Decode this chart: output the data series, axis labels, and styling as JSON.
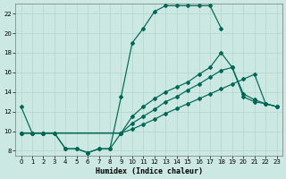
{
  "xlabel": "Humidex (Indice chaleur)",
  "bg_color": "#cce8e2",
  "grid_color": "#b8d8d0",
  "line_color": "#006655",
  "xlim_min": -0.5,
  "xlim_max": 23.5,
  "ylim_min": 7.5,
  "ylim_max": 23.0,
  "xticks": [
    0,
    1,
    2,
    3,
    4,
    5,
    6,
    7,
    8,
    9,
    10,
    11,
    12,
    13,
    14,
    15,
    16,
    17,
    18,
    19,
    20,
    21,
    22,
    23
  ],
  "yticks": [
    8,
    10,
    12,
    14,
    16,
    18,
    20,
    22
  ],
  "curve_main_x": [
    0,
    1,
    2,
    3,
    4,
    5,
    6,
    7,
    8,
    9,
    10,
    11,
    12,
    13,
    14,
    15,
    16,
    17,
    18
  ],
  "curve_main_y": [
    12.5,
    9.8,
    9.8,
    9.8,
    8.2,
    8.2,
    7.8,
    8.2,
    8.2,
    13.5,
    19.0,
    20.5,
    22.2,
    22.8,
    22.8,
    22.8,
    22.8,
    22.8,
    20.5
  ],
  "curve_mid1_x": [
    0,
    1,
    2,
    9,
    10,
    11,
    12,
    13,
    14,
    15,
    16,
    17,
    18,
    19,
    20,
    21,
    22,
    23
  ],
  "curve_mid1_y": [
    9.8,
    9.8,
    9.8,
    9.8,
    11.5,
    12.5,
    13.3,
    14.0,
    14.5,
    15.0,
    15.8,
    16.5,
    18.0,
    16.5,
    13.8,
    13.2,
    12.8,
    12.5
  ],
  "curve_mid2_x": [
    0,
    1,
    2,
    9,
    10,
    11,
    12,
    13,
    14,
    15,
    16,
    17,
    18,
    19,
    20,
    21,
    22,
    23
  ],
  "curve_mid2_y": [
    9.8,
    9.8,
    9.8,
    9.8,
    10.8,
    11.5,
    12.2,
    13.0,
    13.5,
    14.2,
    14.8,
    15.5,
    16.2,
    16.5,
    13.5,
    13.0,
    12.8,
    12.5
  ],
  "curve_low_x": [
    0,
    1,
    2,
    3,
    4,
    5,
    6,
    7,
    8,
    9,
    10,
    11,
    12,
    13,
    14,
    15,
    16,
    17,
    18,
    19,
    20,
    21,
    22,
    23
  ],
  "curve_low_y": [
    9.8,
    9.8,
    9.8,
    9.8,
    8.2,
    8.2,
    7.8,
    8.2,
    8.2,
    9.8,
    10.2,
    10.7,
    11.2,
    11.8,
    12.3,
    12.8,
    13.3,
    13.8,
    14.3,
    14.8,
    15.3,
    15.8,
    12.8,
    12.5
  ]
}
